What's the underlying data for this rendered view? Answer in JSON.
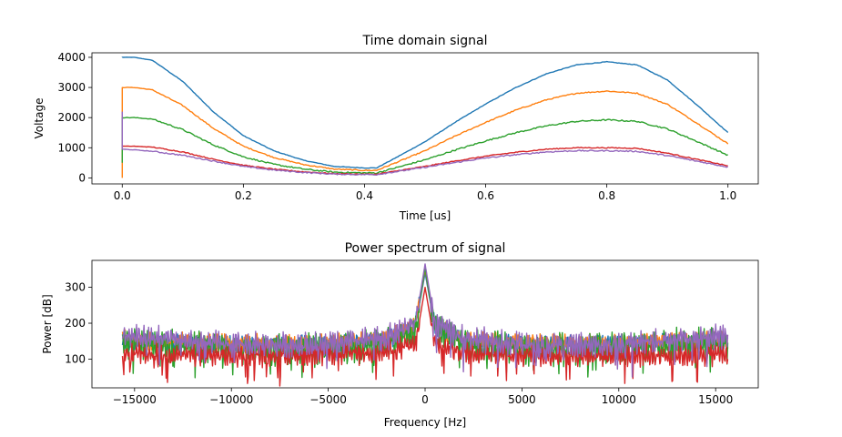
{
  "figure": {
    "background": "#ffffff",
    "colors": [
      "#1f77b4",
      "#ff7f0e",
      "#2ca02c",
      "#d62728",
      "#9467bd"
    ]
  },
  "chart_data": [
    {
      "type": "line",
      "title": "Time domain signal",
      "xlabel": "Time [us]",
      "ylabel": "Voltage",
      "xlim": [
        -0.05,
        1.05
      ],
      "ylim": [
        -200,
        4150
      ],
      "xticks": [
        0.0,
        0.2,
        0.4,
        0.6,
        0.8,
        1.0
      ],
      "xtick_labels": [
        "0.0",
        "0.2",
        "0.4",
        "0.6",
        "0.8",
        "1.0"
      ],
      "yticks": [
        0,
        1000,
        2000,
        3000,
        4000
      ],
      "ytick_labels": [
        "0",
        "1000",
        "2000",
        "3000",
        "4000"
      ],
      "grid": false,
      "series": [
        {
          "color": "#1f77b4",
          "x": [
            0.0,
            0.02,
            0.05,
            0.1,
            0.15,
            0.2,
            0.25,
            0.3,
            0.35,
            0.4,
            0.42,
            0.45,
            0.5,
            0.55,
            0.6,
            0.65,
            0.7,
            0.75,
            0.8,
            0.85,
            0.9,
            0.95,
            1.0
          ],
          "y": [
            4000,
            4000,
            3900,
            3200,
            2200,
            1400,
            900,
            580,
            380,
            330,
            330,
            650,
            1200,
            1850,
            2450,
            3000,
            3450,
            3750,
            3850,
            3750,
            3250,
            2400,
            1500
          ]
        },
        {
          "color": "#ff7f0e",
          "x": [
            0.0,
            0.02,
            0.05,
            0.1,
            0.15,
            0.2,
            0.25,
            0.3,
            0.35,
            0.4,
            0.42,
            0.45,
            0.5,
            0.55,
            0.6,
            0.65,
            0.7,
            0.75,
            0.8,
            0.85,
            0.9,
            0.95,
            1.0
          ],
          "y": [
            3000,
            3000,
            2920,
            2400,
            1650,
            1050,
            680,
            440,
            290,
            250,
            250,
            490,
            900,
            1390,
            1840,
            2250,
            2590,
            2810,
            2880,
            2810,
            2440,
            1800,
            1130
          ]
        },
        {
          "color": "#2ca02c",
          "x": [
            0.0,
            0.02,
            0.05,
            0.1,
            0.15,
            0.2,
            0.25,
            0.3,
            0.35,
            0.4,
            0.42,
            0.45,
            0.5,
            0.55,
            0.6,
            0.65,
            0.7,
            0.75,
            0.8,
            0.85,
            0.9,
            0.95,
            1.0
          ],
          "y": [
            2000,
            2000,
            1950,
            1600,
            1100,
            700,
            450,
            290,
            190,
            165,
            165,
            325,
            600,
            925,
            1225,
            1500,
            1725,
            1875,
            1925,
            1875,
            1625,
            1200,
            750
          ]
        },
        {
          "color": "#d62728",
          "x": [
            0.0,
            0.02,
            0.05,
            0.1,
            0.15,
            0.2,
            0.25,
            0.3,
            0.35,
            0.4,
            0.42,
            0.45,
            0.5,
            0.55,
            0.6,
            0.65,
            0.7,
            0.75,
            0.8,
            0.85,
            0.9,
            0.95,
            1.0
          ],
          "y": [
            1050,
            1050,
            1020,
            860,
            620,
            420,
            290,
            200,
            140,
            120,
            120,
            220,
            380,
            560,
            720,
            850,
            950,
            1000,
            1000,
            980,
            820,
            610,
            400
          ]
        },
        {
          "color": "#9467bd",
          "x": [
            0.0,
            0.02,
            0.05,
            0.1,
            0.15,
            0.2,
            0.25,
            0.3,
            0.35,
            0.4,
            0.42,
            0.45,
            0.5,
            0.55,
            0.6,
            0.65,
            0.7,
            0.75,
            0.8,
            0.85,
            0.9,
            0.95,
            1.0
          ],
          "y": [
            950,
            930,
            880,
            750,
            560,
            380,
            260,
            180,
            125,
            110,
            110,
            200,
            350,
            510,
            660,
            770,
            860,
            900,
            900,
            880,
            740,
            550,
            360
          ]
        }
      ]
    },
    {
      "type": "line",
      "title": "Power spectrum of signal",
      "xlabel": "Frequency [Hz]",
      "ylabel": "Power [dB]",
      "xlim": [
        -17200,
        17200
      ],
      "ylim": [
        20,
        375
      ],
      "xticks": [
        -15000,
        -10000,
        -5000,
        0,
        5000,
        10000,
        15000
      ],
      "xtick_labels": [
        "−15000",
        "−10000",
        "−5000",
        "0",
        "5000",
        "10000",
        "15000"
      ],
      "yticks": [
        100,
        200,
        300
      ],
      "ytick_labels": [
        "100",
        "200",
        "300"
      ],
      "grid": false,
      "series": [
        {
          "color": "#1f77b4",
          "x": [
            -15625,
            -13000,
            -10000,
            -5000,
            -2000,
            -500,
            0,
            500,
            2000,
            5000,
            10000,
            13000,
            15625
          ],
          "y": [
            150,
            145,
            140,
            140,
            150,
            190,
            340,
            190,
            150,
            140,
            140,
            145,
            150
          ]
        },
        {
          "color": "#ff7f0e",
          "x": [
            -15625,
            -13000,
            -10000,
            -5000,
            -2000,
            -500,
            0,
            500,
            2000,
            5000,
            10000,
            13000,
            15625
          ],
          "y": [
            152,
            147,
            142,
            142,
            152,
            192,
            350,
            192,
            152,
            142,
            142,
            147,
            152
          ]
        },
        {
          "color": "#2ca02c",
          "x": [
            -15625,
            -13000,
            -10000,
            -5000,
            -2000,
            -500,
            0,
            500,
            2000,
            5000,
            10000,
            13000,
            15625
          ],
          "y": [
            145,
            140,
            130,
            125,
            140,
            185,
            355,
            185,
            140,
            125,
            130,
            140,
            145
          ]
        },
        {
          "color": "#d62728",
          "x": [
            -15625,
            -13000,
            -10000,
            -5000,
            -2000,
            -500,
            0,
            500,
            2000,
            5000,
            10000,
            13000,
            15625
          ],
          "y": [
            115,
            110,
            110,
            112,
            120,
            140,
            300,
            140,
            120,
            112,
            110,
            110,
            115
          ]
        },
        {
          "color": "#9467bd",
          "x": [
            -15625,
            -13000,
            -10000,
            -5000,
            -2000,
            -500,
            0,
            500,
            2000,
            5000,
            10000,
            13000,
            15625
          ],
          "y": [
            165,
            155,
            140,
            140,
            160,
            200,
            365,
            200,
            160,
            140,
            140,
            155,
            165
          ]
        }
      ]
    }
  ]
}
